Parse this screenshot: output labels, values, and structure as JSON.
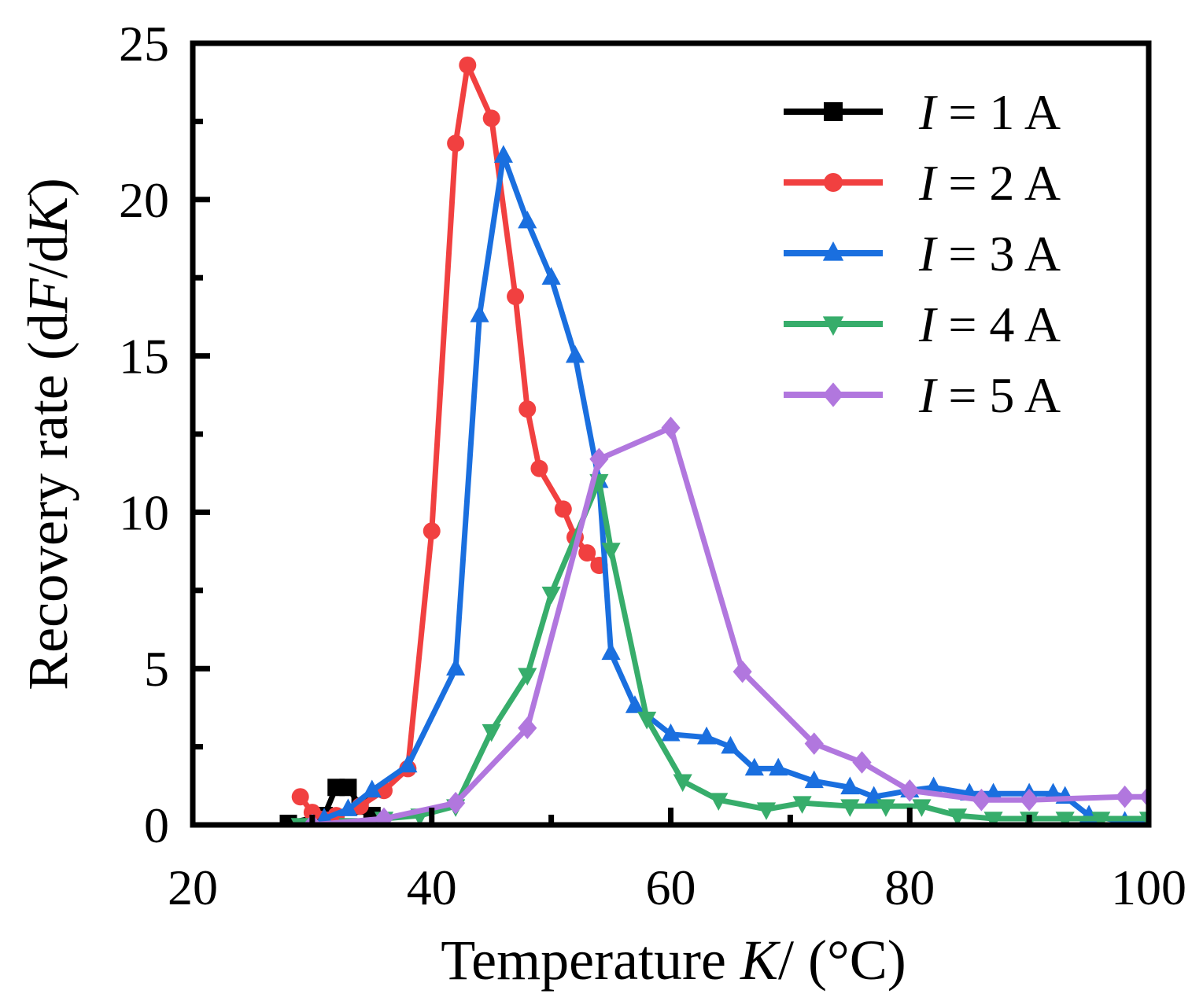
{
  "chart_data": {
    "type": "line",
    "title": "",
    "xlabel": "Temperature K/ (°C)",
    "xlabel_parts": {
      "prefix": "Temperature ",
      "var": "K",
      "suffix": "/ (°C)"
    },
    "ylabel": "Recovery rate (dF/dK)",
    "ylabel_parts": {
      "prefix": "Recovery rate (d",
      "var1": "F",
      "mid": "/d",
      "var2": "K",
      "suffix": ")"
    },
    "xlim": [
      20,
      100
    ],
    "ylim": [
      0,
      25
    ],
    "xticks": [
      20,
      40,
      60,
      80,
      100
    ],
    "yticks": [
      0,
      5,
      10,
      15,
      20,
      25
    ],
    "grid": false,
    "legend_position": "top-right",
    "series": [
      {
        "name": "I = 1 A",
        "label_var": "I",
        "label_rest": " = 1 A",
        "color": "#000000",
        "marker": "square",
        "points": [
          [
            28,
            0.05
          ],
          [
            31,
            0.3
          ],
          [
            32,
            1.2
          ],
          [
            33,
            1.2
          ],
          [
            34,
            0.6
          ],
          [
            35,
            0.3
          ]
        ]
      },
      {
        "name": "I = 2 A",
        "label_var": "I",
        "label_rest": " = 2 A",
        "color": "#f14040",
        "marker": "circle",
        "points": [
          [
            29,
            0.9
          ],
          [
            30,
            0.4
          ],
          [
            32,
            0.3
          ],
          [
            34,
            0.6
          ],
          [
            36,
            1.1
          ],
          [
            38,
            1.8
          ],
          [
            40,
            9.4
          ],
          [
            42,
            21.8
          ],
          [
            43,
            24.3
          ],
          [
            45,
            22.6
          ],
          [
            47,
            16.9
          ],
          [
            48,
            13.3
          ],
          [
            49,
            11.4
          ],
          [
            51,
            10.1
          ],
          [
            52,
            9.2
          ],
          [
            53,
            8.7
          ],
          [
            54,
            8.3
          ]
        ]
      },
      {
        "name": "I = 3 A",
        "label_var": "I",
        "label_rest": " = 3 A",
        "color": "#1a6fdf",
        "marker": "triangle-up",
        "points": [
          [
            31,
            0.2
          ],
          [
            33,
            0.5
          ],
          [
            35,
            1.1
          ],
          [
            38,
            1.9
          ],
          [
            42,
            5.0
          ],
          [
            44,
            16.3
          ],
          [
            46,
            21.4
          ],
          [
            48,
            19.3
          ],
          [
            50,
            17.5
          ],
          [
            52,
            15.0
          ],
          [
            54,
            11.0
          ],
          [
            55,
            5.5
          ],
          [
            57,
            3.8
          ],
          [
            60,
            2.9
          ],
          [
            63,
            2.8
          ],
          [
            65,
            2.5
          ],
          [
            67,
            1.8
          ],
          [
            69,
            1.8
          ],
          [
            72,
            1.4
          ],
          [
            75,
            1.2
          ],
          [
            77,
            0.9
          ],
          [
            80,
            1.1
          ],
          [
            82,
            1.2
          ],
          [
            85,
            1.0
          ],
          [
            87,
            1.0
          ],
          [
            90,
            1.0
          ],
          [
            92,
            1.0
          ],
          [
            93,
            0.9
          ],
          [
            95,
            0.3
          ],
          [
            98,
            0.1
          ],
          [
            100,
            0.1
          ]
        ]
      },
      {
        "name": "I = 4 A",
        "label_var": "I",
        "label_rest": " = 4 A",
        "color": "#37ad6b",
        "marker": "triangle-down",
        "points": [
          [
            29,
            0.0
          ],
          [
            33,
            0.0
          ],
          [
            36,
            0.2
          ],
          [
            39,
            0.3
          ],
          [
            42,
            0.6
          ],
          [
            45,
            3.0
          ],
          [
            48,
            4.8
          ],
          [
            50,
            7.4
          ],
          [
            54,
            11.0
          ],
          [
            55,
            8.8
          ],
          [
            58,
            3.4
          ],
          [
            61,
            1.4
          ],
          [
            64,
            0.8
          ],
          [
            68,
            0.5
          ],
          [
            71,
            0.7
          ],
          [
            75,
            0.6
          ],
          [
            78,
            0.6
          ],
          [
            81,
            0.6
          ],
          [
            84,
            0.3
          ],
          [
            87,
            0.2
          ],
          [
            90,
            0.2
          ],
          [
            93,
            0.2
          ],
          [
            96,
            0.2
          ],
          [
            100,
            0.2
          ]
        ]
      },
      {
        "name": "I = 5 A",
        "label_var": "I",
        "label_rest": " = 5 A",
        "color": "#b177de",
        "marker": "diamond",
        "points": [
          [
            30,
            0.0
          ],
          [
            36,
            0.2
          ],
          [
            42,
            0.7
          ],
          [
            48,
            3.1
          ],
          [
            54,
            11.7
          ],
          [
            60,
            12.7
          ],
          [
            66,
            4.9
          ],
          [
            72,
            2.6
          ],
          [
            76,
            2.0
          ],
          [
            80,
            1.1
          ],
          [
            86,
            0.8
          ],
          [
            90,
            0.8
          ],
          [
            98,
            0.9
          ],
          [
            100,
            0.9
          ]
        ]
      }
    ]
  }
}
